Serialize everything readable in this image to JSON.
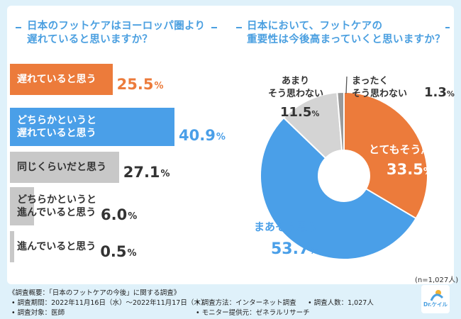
{
  "chart_data": [
    {
      "type": "bar",
      "orientation": "horizontal",
      "title": "日本のフットケアはヨーロッパ圏より遅れていると思いますか？",
      "title_lines": [
        "日本のフットケアはヨーロッパ圏より",
        "遅れていると思いますか？"
      ],
      "categories": [
        "遅れていると思う",
        "どちらかというと遅れていると思う",
        "同じくらいだと思う",
        "どちらかというと進んでいると思う",
        "進んでいると思う"
      ],
      "category_lines": [
        [
          "遅れていると思う"
        ],
        [
          "どちらかというと",
          "遅れていると思う"
        ],
        [
          "同じくらいだと思う"
        ],
        [
          "どちらかというと",
          "進んでいると思う"
        ],
        [
          "進んでいると思う"
        ]
      ],
      "values": [
        25.5,
        40.9,
        27.1,
        6.0,
        0.5
      ],
      "value_labels": [
        "25.5",
        "40.9",
        "27.1",
        "6.0",
        "0.5"
      ],
      "unit": "%",
      "colors": [
        "#ec7b3b",
        "#4a9fe8",
        "#c8c8c8",
        "#c8c8c8",
        "#c8c8c8"
      ],
      "value_colors": [
        "#ec7b3b",
        "#4a9fe8",
        "#333333",
        "#333333",
        "#333333"
      ],
      "label_colors": [
        "#ffffff",
        "#ffffff",
        "#333333",
        "#333333",
        "#333333"
      ],
      "xlim": [
        0,
        40.9
      ]
    },
    {
      "type": "pie",
      "style": "donut",
      "title": "日本において、フットケアの重要性は今後高まっていくと思いますか？",
      "title_lines": [
        "日本において、フットケアの",
        "重要性は今後高まっていくと思いますか？"
      ],
      "categories": [
        "とてもそう思う",
        "まあそう思う",
        "あまりそう思わない",
        "まったくそう思わない"
      ],
      "category_lines": [
        [
          "とてもそう思う"
        ],
        [
          "まあそう思う"
        ],
        [
          "あまり",
          "そう思わない"
        ],
        [
          "まったく",
          "そう思わない"
        ]
      ],
      "values": [
        33.5,
        53.7,
        11.5,
        1.3
      ],
      "value_labels": [
        "33.5",
        "53.7",
        "11.5",
        "1.3"
      ],
      "unit": "%",
      "colors": [
        "#ec7b3b",
        "#4a9fe8",
        "#d4d4d4",
        "#9a9a9a"
      ]
    }
  ],
  "sample_note": "(n=1,027人)",
  "footer": {
    "summary": "《調査概要：「日本のフットケアの今後」に関する調査》",
    "period": "• 調査期間：2022年11月16日（水）～2022年11月17日（木）",
    "method": "• 調査方法：インターネット調査",
    "count": "• 調査人数：1,027人",
    "target": "• 調査対象：医師",
    "provider": "• モニター提供元：ゼネラルリサーチ"
  },
  "logo": {
    "text": "Dr.ケイル"
  },
  "colors": {
    "accent": "#4a9fe0",
    "orange": "#ec7b3b",
    "blue": "#4a9fe8",
    "background": "#dff1fa"
  }
}
